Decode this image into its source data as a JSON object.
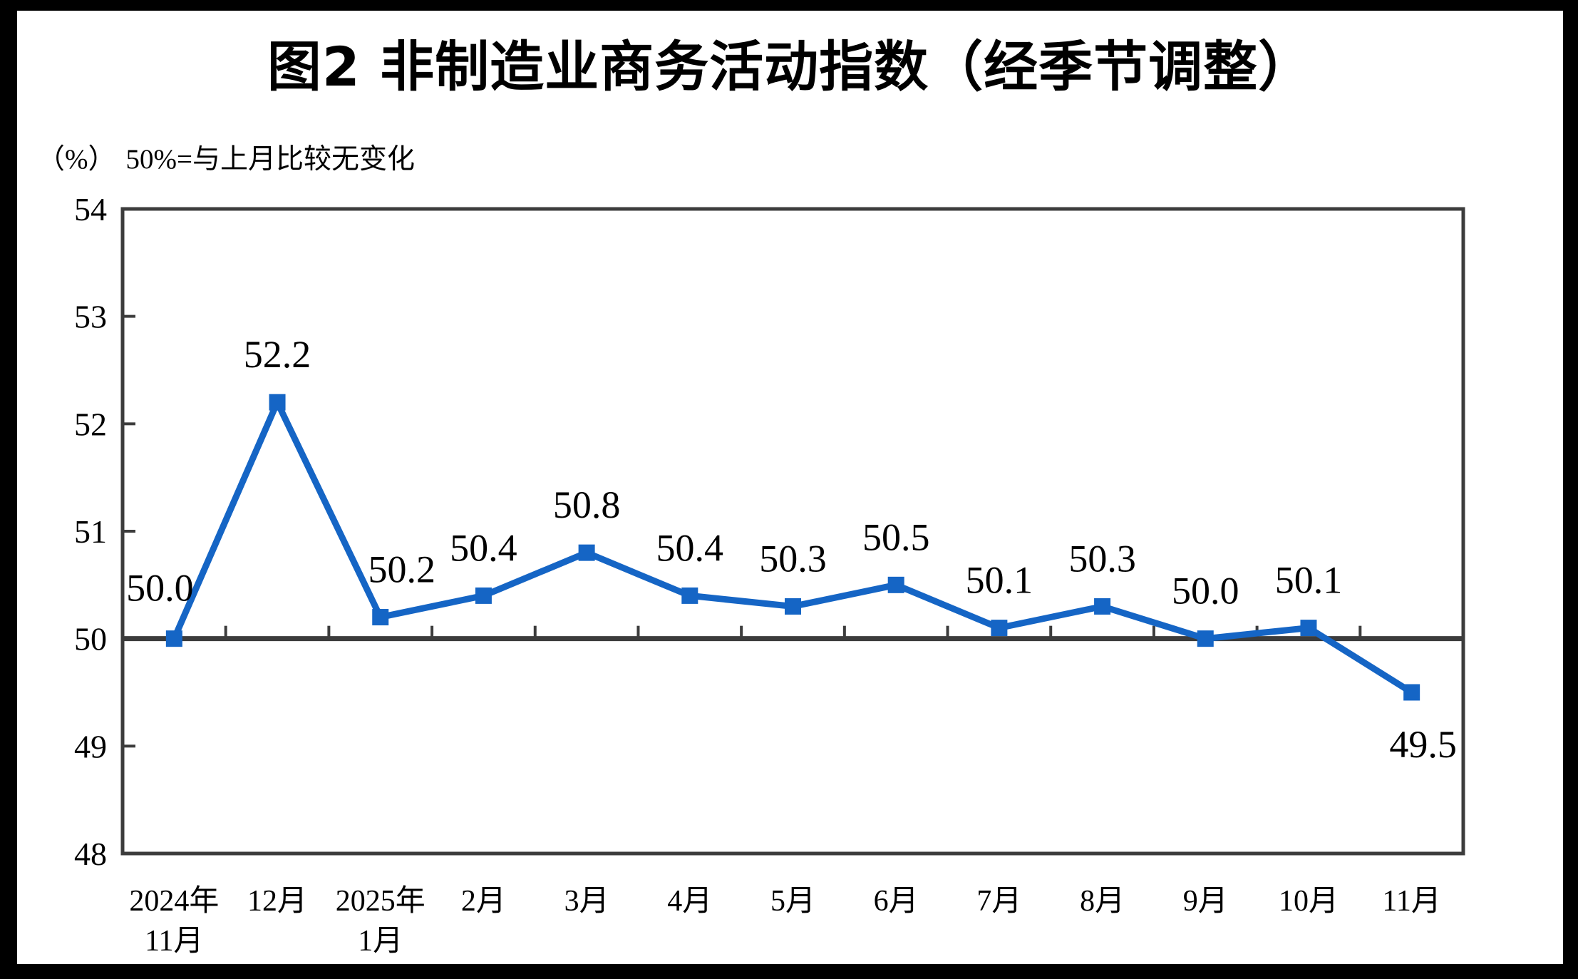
{
  "frame": {
    "outer_background": "#000000",
    "canvas_background": "#ffffff"
  },
  "header": {
    "title": "图2 非制造业商务活动指数（经季节调整）",
    "unit_label": "（%）",
    "subtitle": "50%=与上月比较无变化"
  },
  "chart_data": {
    "type": "line",
    "title": "图2 非制造业商务活动指数（经季节调整）",
    "unit_note": "（%） 50%=与上月比较无变化",
    "categories": [
      [
        "2024年",
        "11月"
      ],
      [
        "12月"
      ],
      [
        "2025年",
        "1月"
      ],
      [
        "2月"
      ],
      [
        "3月"
      ],
      [
        "4月"
      ],
      [
        "5月"
      ],
      [
        "6月"
      ],
      [
        "7月"
      ],
      [
        "8月"
      ],
      [
        "9月"
      ],
      [
        "10月"
      ],
      [
        "11月"
      ]
    ],
    "values": [
      50.0,
      52.2,
      50.2,
      50.4,
      50.8,
      50.4,
      50.3,
      50.5,
      50.1,
      50.3,
      50.0,
      50.1,
      49.5
    ],
    "data_labels": [
      "50.0",
      "52.2",
      "50.2",
      "50.4",
      "50.8",
      "50.4",
      "50.3",
      "50.5",
      "50.1",
      "50.3",
      "50.0",
      "50.1",
      "49.5"
    ],
    "label_placements": [
      "above-left",
      "above",
      "above-right",
      "above",
      "above",
      "above",
      "above",
      "above",
      "above",
      "above",
      "above",
      "above",
      "below"
    ],
    "ylim": [
      48,
      54
    ],
    "yticks": [
      54,
      53,
      52,
      51,
      50,
      49,
      48
    ],
    "axis_cross_value": 50,
    "grid": false,
    "legend": "none",
    "marker": "square",
    "colors": {
      "series": "#1565C5",
      "axis": "#3C3C3C",
      "text": "#000000"
    }
  }
}
